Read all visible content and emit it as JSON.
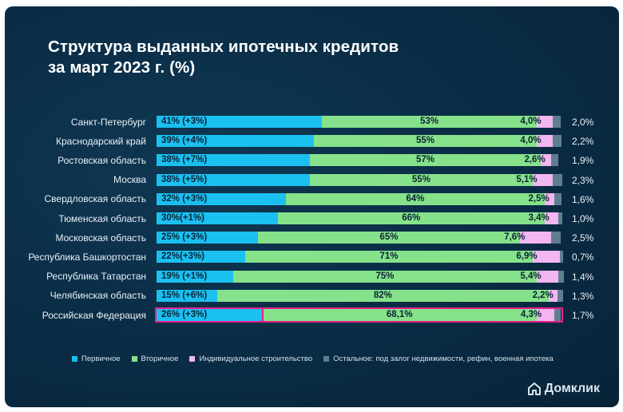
{
  "colors": {
    "primary": "#1ac0f0",
    "secondary": "#86e28a",
    "individual": "#f2b6f0",
    "other": "#5f7f90",
    "highlight_border": "#e91e8c"
  },
  "brand": {
    "name": "Домклик"
  },
  "chart_data": {
    "type": "bar",
    "orientation": "horizontal",
    "stacked": true,
    "title": "Структура выданных ипотечных кредитов за март 2023 г. (%)",
    "categories": [
      "Санкт-Петербург",
      "Краснодарский край",
      "Ростовская область",
      "Москва",
      "Свердловская область",
      "Тюменская область",
      "Московская область",
      "Республика Башкортостан",
      "Республика Татарстан",
      "Челябинская область",
      "Российская Федерация"
    ],
    "highlighted_category": "Российская Федерация",
    "series": [
      {
        "name": "Первичное",
        "color": "#1ac0f0",
        "values": [
          41,
          39,
          38,
          38,
          32,
          30,
          25,
          22,
          19,
          15,
          26
        ],
        "labels": [
          "41% (+3%)",
          "39% (+4%)",
          "38% (+7%)",
          "38% (+5%)",
          "32% (+3%)",
          "30%(+1%)",
          "25% (+3%)",
          "22%(+3%)",
          "19% (+1%)",
          "15% (+6%)",
          "26% (+3%)"
        ]
      },
      {
        "name": "Вторичное",
        "color": "#86e28a",
        "values": [
          53,
          55,
          57,
          55,
          64,
          66,
          65,
          71,
          75,
          82,
          68.1
        ],
        "labels": [
          "53%",
          "55%",
          "57%",
          "55%",
          "64%",
          "66%",
          "65%",
          "71%",
          "75%",
          "82%",
          "68,1%"
        ]
      },
      {
        "name": "Индивидуальное строительство",
        "color": "#f2b6f0",
        "values": [
          4.0,
          4.0,
          2.6,
          5.1,
          2.5,
          3.4,
          7.6,
          6.9,
          5.4,
          2.2,
          4.3
        ],
        "labels": [
          "4,0%",
          "4,0%",
          "2,6%",
          "5,1%",
          "2,5%",
          "3,4%",
          "7,6%",
          "6,9%",
          "5,4%",
          "2,2%",
          "4,3%"
        ]
      },
      {
        "name": "Остальное: под залог недвижимости, рефин, военная ипотека",
        "color": "#5f7f90",
        "values": [
          2.0,
          2.2,
          1.9,
          2.3,
          1.6,
          1.0,
          2.5,
          0.7,
          1.4,
          1.3,
          1.7
        ],
        "labels": [
          "2,0%",
          "2,2%",
          "1,9%",
          "2,3%",
          "1,6%",
          "1,0%",
          "2,5%",
          "0,7%",
          "1,4%",
          "1,3%",
          "1,7%"
        ]
      }
    ],
    "legend_position": "bottom",
    "grid": false
  }
}
